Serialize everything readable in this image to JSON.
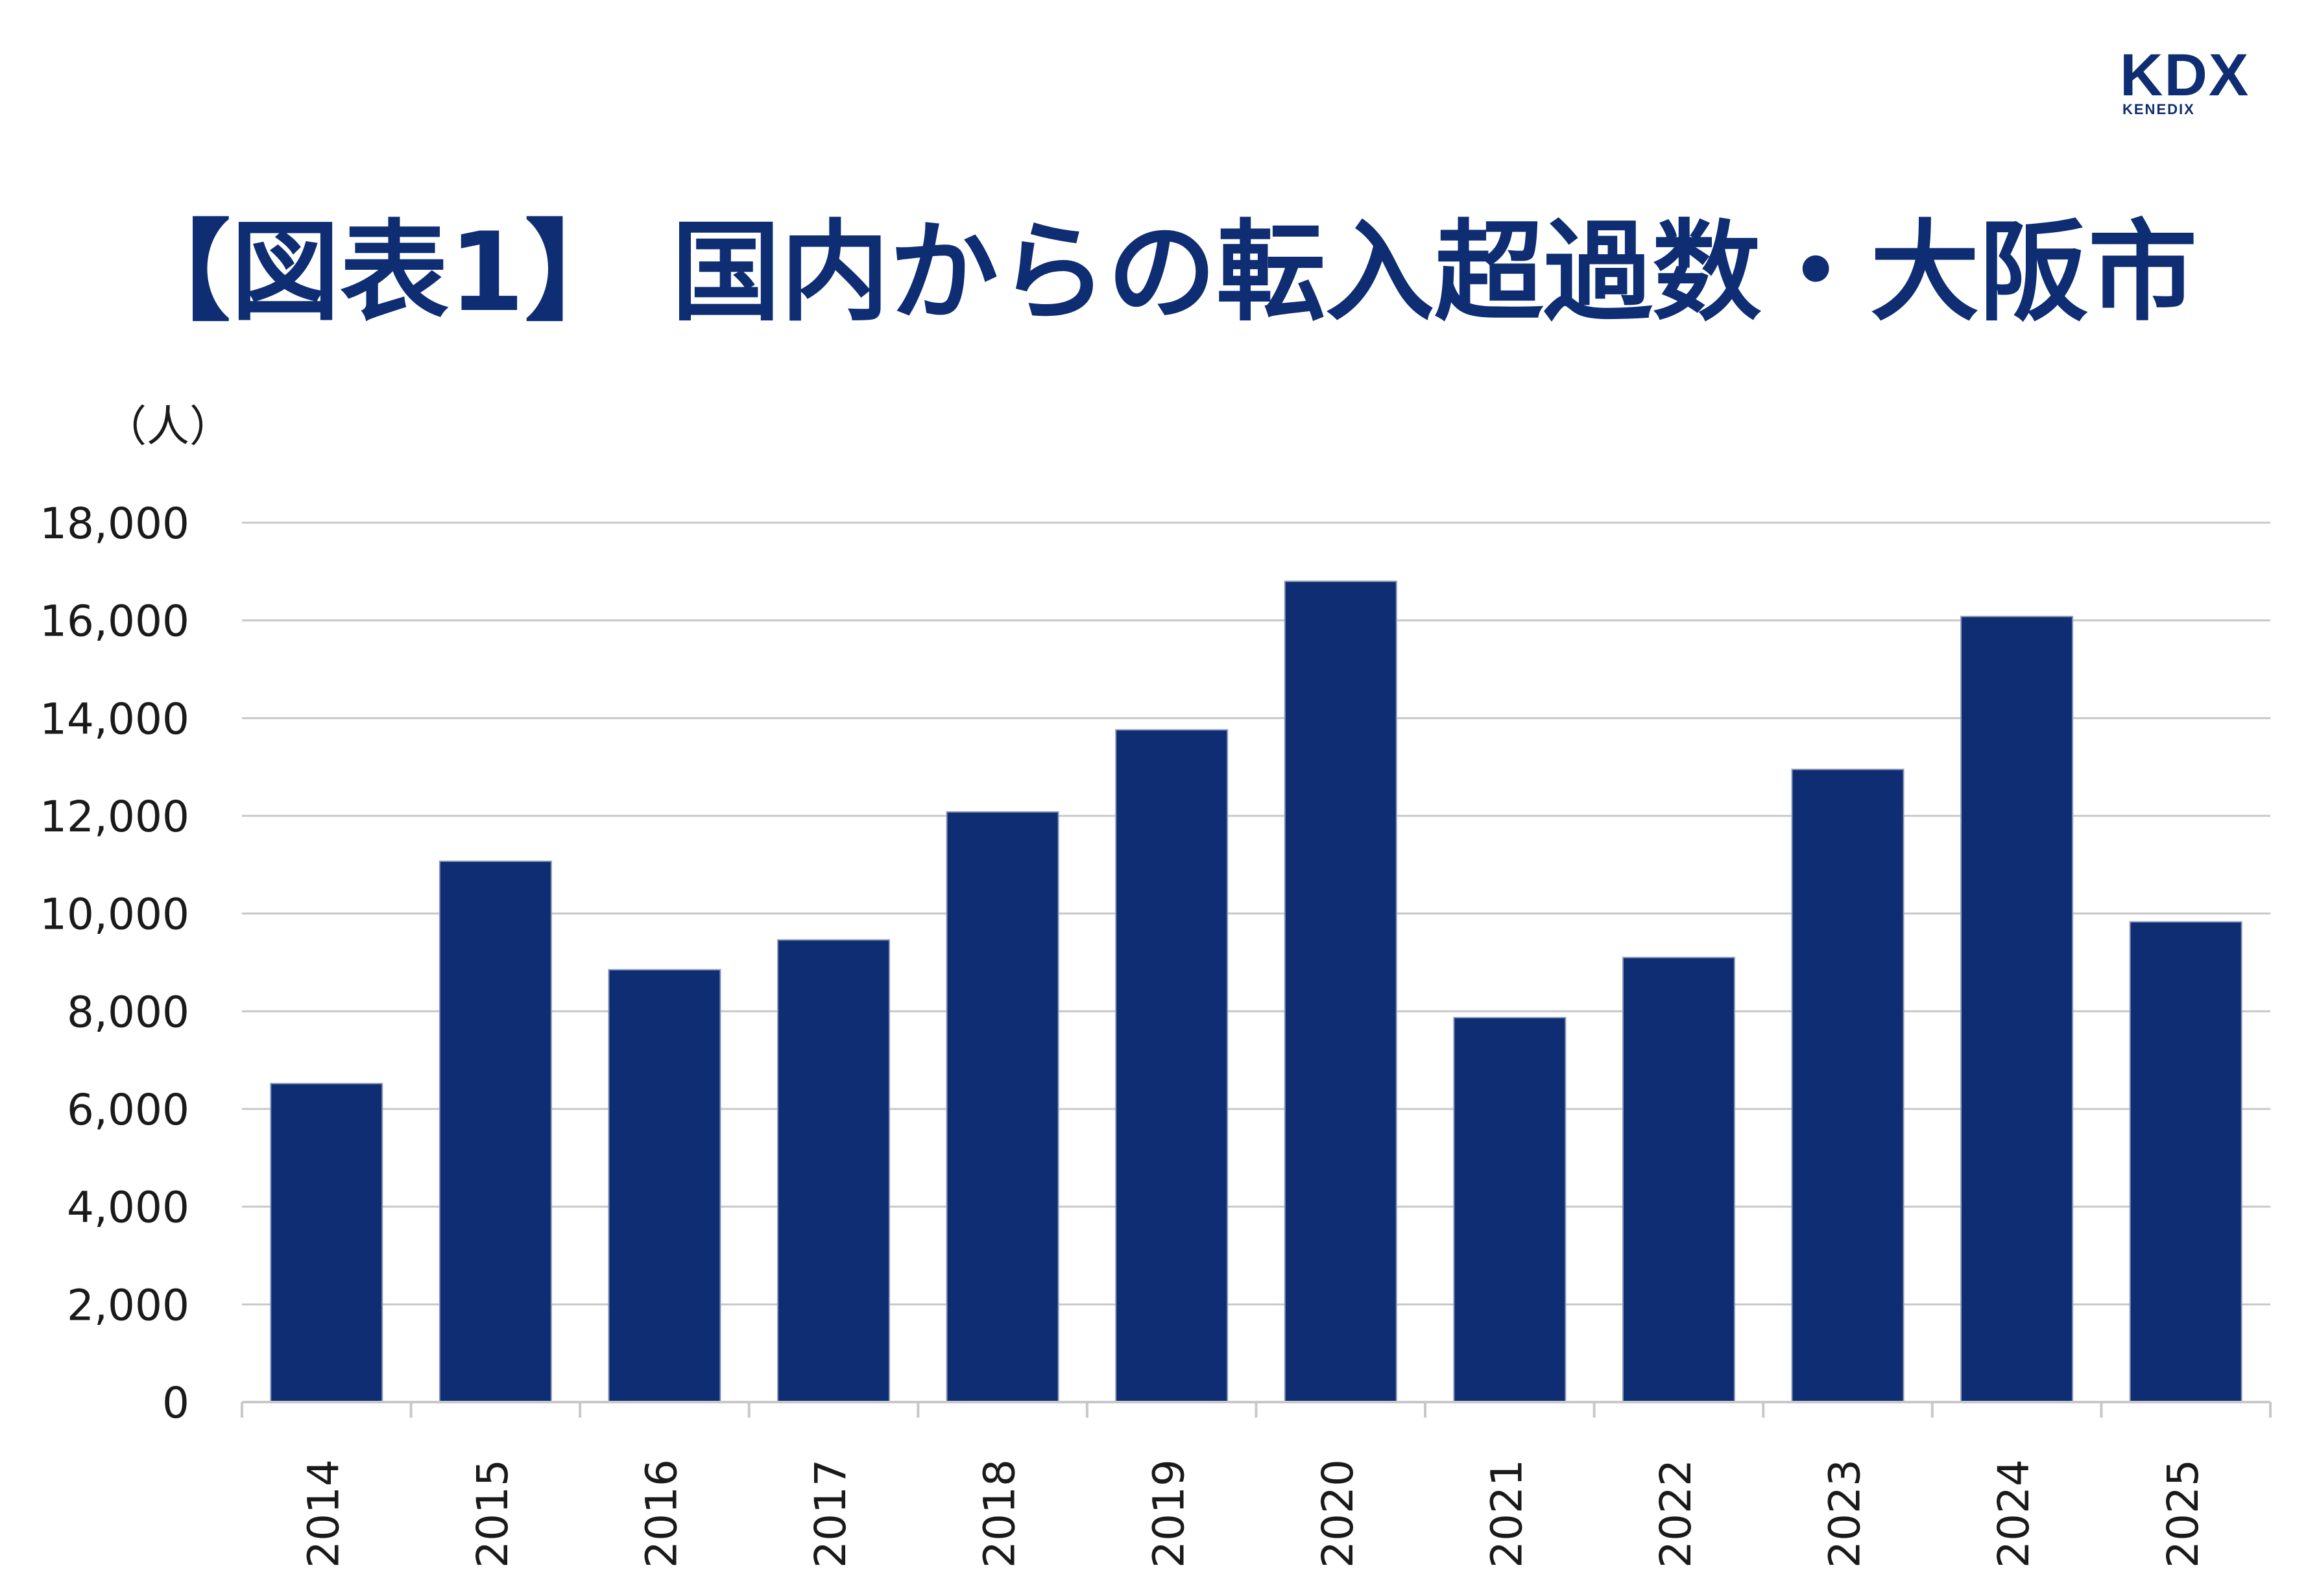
{
  "logo": {
    "main": "KDX",
    "sub": "KENEDIX"
  },
  "title": "【図表1】 国内からの転入超過数・大阪市",
  "colors": {
    "bar": "#0e2d72",
    "title": "#0e2d72",
    "logo": "#0e2d72",
    "grid": "#c8c8c8",
    "text": "#1a1a1a"
  },
  "chart_data": {
    "type": "bar",
    "unit_label": "（人）",
    "categories": [
      "2014",
      "2015",
      "2016",
      "2017",
      "2018",
      "2019",
      "2020",
      "2021",
      "2022",
      "2023",
      "2024",
      "2025"
    ],
    "values": [
      6520,
      11070,
      8850,
      9460,
      12080,
      13760,
      16800,
      7870,
      9100,
      12950,
      16080,
      9830
    ],
    "ylim": [
      0,
      18000
    ],
    "yticks": [
      0,
      2000,
      4000,
      6000,
      8000,
      10000,
      12000,
      14000,
      16000,
      18000
    ],
    "ytick_labels": [
      "0",
      "2,000",
      "4,000",
      "6,000",
      "8,000",
      "10,000",
      "12,000",
      "14,000",
      "16,000",
      "18,000"
    ],
    "grid": true,
    "legend": "none"
  }
}
